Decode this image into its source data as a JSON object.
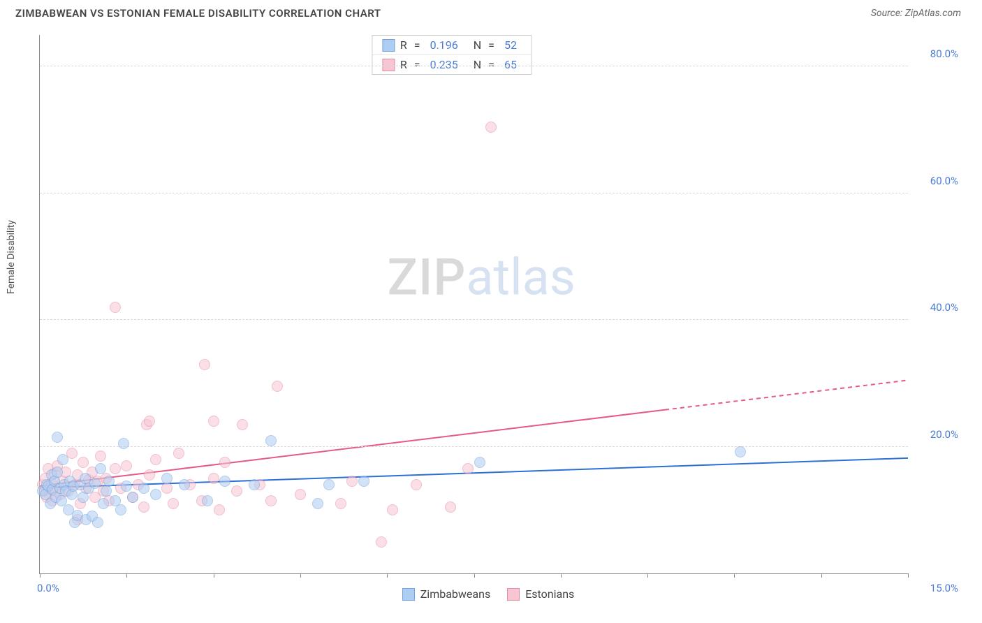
{
  "header": {
    "title": "ZIMBABWEAN VS ESTONIAN FEMALE DISABILITY CORRELATION CHART",
    "source_label": "Source: ZipAtlas.com"
  },
  "watermark": {
    "part1": "ZIP",
    "part2": "atlas"
  },
  "chart": {
    "type": "scatter",
    "ylabel": "Female Disability",
    "xlim": [
      0,
      15.0
    ],
    "ylim": [
      0,
      85.0
    ],
    "xaxis_min_label": "0.0%",
    "xaxis_max_label": "15.0%",
    "xtick_positions": [
      0,
      1.5,
      3.0,
      4.5,
      6.0,
      7.5,
      9.0,
      10.5,
      12.0,
      13.5,
      15.0
    ],
    "y_gridlines": [
      20.0,
      40.0,
      60.0,
      80.0
    ],
    "y_grid_labels": [
      "20.0%",
      "40.0%",
      "60.0%",
      "80.0%"
    ],
    "grid_color": "#d9d9d9",
    "axis_color": "#888888",
    "ylabel_color": "#4a7bd6",
    "background_color": "#ffffff",
    "marker_radius": 8,
    "marker_opacity": 0.55,
    "series": [
      {
        "name": "Zimbabweans",
        "fill": "#aecdf2",
        "stroke": "#6fa3e0",
        "r_value": "0.196",
        "n_value": "52",
        "trend": {
          "y_at_x0": 13.5,
          "y_at_xmax": 18.2,
          "solid_until_x": 15.0,
          "color": "#2e6fd6",
          "width": 2
        },
        "points": [
          {
            "x": 0.05,
            "y": 13.0
          },
          {
            "x": 0.1,
            "y": 12.5
          },
          {
            "x": 0.12,
            "y": 14.0
          },
          {
            "x": 0.15,
            "y": 13.8
          },
          {
            "x": 0.18,
            "y": 11.0
          },
          {
            "x": 0.2,
            "y": 15.5
          },
          {
            "x": 0.22,
            "y": 13.2
          },
          {
            "x": 0.25,
            "y": 14.5
          },
          {
            "x": 0.28,
            "y": 12.0
          },
          {
            "x": 0.3,
            "y": 16.0
          },
          {
            "x": 0.3,
            "y": 21.5
          },
          {
            "x": 0.35,
            "y": 13.5
          },
          {
            "x": 0.38,
            "y": 11.5
          },
          {
            "x": 0.4,
            "y": 18.0
          },
          {
            "x": 0.42,
            "y": 14.0
          },
          {
            "x": 0.45,
            "y": 13.0
          },
          {
            "x": 0.5,
            "y": 10.0
          },
          {
            "x": 0.52,
            "y": 14.5
          },
          {
            "x": 0.55,
            "y": 12.5
          },
          {
            "x": 0.58,
            "y": 13.8
          },
          {
            "x": 0.6,
            "y": 8.0
          },
          {
            "x": 0.65,
            "y": 9.2
          },
          {
            "x": 0.7,
            "y": 14.0
          },
          {
            "x": 0.75,
            "y": 12.0
          },
          {
            "x": 0.78,
            "y": 15.0
          },
          {
            "x": 0.8,
            "y": 8.5
          },
          {
            "x": 0.85,
            "y": 13.5
          },
          {
            "x": 0.9,
            "y": 9.0
          },
          {
            "x": 0.95,
            "y": 14.2
          },
          {
            "x": 1.0,
            "y": 8.0
          },
          {
            "x": 1.05,
            "y": 16.5
          },
          {
            "x": 1.1,
            "y": 11.0
          },
          {
            "x": 1.15,
            "y": 13.0
          },
          {
            "x": 1.2,
            "y": 14.5
          },
          {
            "x": 1.3,
            "y": 11.5
          },
          {
            "x": 1.4,
            "y": 10.0
          },
          {
            "x": 1.5,
            "y": 13.8
          },
          {
            "x": 1.45,
            "y": 20.5
          },
          {
            "x": 1.6,
            "y": 12.0
          },
          {
            "x": 1.8,
            "y": 13.5
          },
          {
            "x": 2.0,
            "y": 12.5
          },
          {
            "x": 2.2,
            "y": 15.0
          },
          {
            "x": 2.5,
            "y": 14.0
          },
          {
            "x": 2.9,
            "y": 11.5
          },
          {
            "x": 3.2,
            "y": 14.5
          },
          {
            "x": 3.7,
            "y": 14.0
          },
          {
            "x": 4.0,
            "y": 21.0
          },
          {
            "x": 4.8,
            "y": 11.0
          },
          {
            "x": 5.0,
            "y": 14.0
          },
          {
            "x": 5.6,
            "y": 14.5
          },
          {
            "x": 7.6,
            "y": 17.5
          },
          {
            "x": 12.1,
            "y": 19.2
          }
        ]
      },
      {
        "name": "Estonians",
        "fill": "#f6c6d3",
        "stroke": "#e88aa5",
        "r_value": "0.235",
        "n_value": "65",
        "trend": {
          "y_at_x0": 13.8,
          "y_at_xmax": 30.5,
          "solid_until_x": 10.8,
          "color": "#e45a88",
          "width": 2
        },
        "points": [
          {
            "x": 0.05,
            "y": 14.0
          },
          {
            "x": 0.08,
            "y": 13.0
          },
          {
            "x": 0.1,
            "y": 15.0
          },
          {
            "x": 0.12,
            "y": 12.0
          },
          {
            "x": 0.15,
            "y": 16.5
          },
          {
            "x": 0.18,
            "y": 13.5
          },
          {
            "x": 0.2,
            "y": 14.2
          },
          {
            "x": 0.22,
            "y": 11.5
          },
          {
            "x": 0.25,
            "y": 15.8
          },
          {
            "x": 0.28,
            "y": 13.0
          },
          {
            "x": 0.3,
            "y": 17.0
          },
          {
            "x": 0.35,
            "y": 12.5
          },
          {
            "x": 0.4,
            "y": 14.5
          },
          {
            "x": 0.45,
            "y": 16.0
          },
          {
            "x": 0.5,
            "y": 13.0
          },
          {
            "x": 0.55,
            "y": 19.0
          },
          {
            "x": 0.6,
            "y": 14.0
          },
          {
            "x": 0.65,
            "y": 15.5
          },
          {
            "x": 0.7,
            "y": 11.0
          },
          {
            "x": 0.75,
            "y": 17.5
          },
          {
            "x": 0.8,
            "y": 13.5
          },
          {
            "x": 0.85,
            "y": 14.8
          },
          {
            "x": 0.65,
            "y": 8.5
          },
          {
            "x": 0.9,
            "y": 16.0
          },
          {
            "x": 0.95,
            "y": 12.0
          },
          {
            "x": 1.0,
            "y": 14.5
          },
          {
            "x": 1.05,
            "y": 18.5
          },
          {
            "x": 1.1,
            "y": 13.0
          },
          {
            "x": 1.15,
            "y": 15.0
          },
          {
            "x": 1.2,
            "y": 11.5
          },
          {
            "x": 1.3,
            "y": 16.5
          },
          {
            "x": 1.4,
            "y": 13.5
          },
          {
            "x": 1.5,
            "y": 17.0
          },
          {
            "x": 1.6,
            "y": 12.0
          },
          {
            "x": 1.3,
            "y": 42.0
          },
          {
            "x": 1.7,
            "y": 14.0
          },
          {
            "x": 1.8,
            "y": 10.5
          },
          {
            "x": 1.9,
            "y": 15.5
          },
          {
            "x": 1.85,
            "y": 23.5
          },
          {
            "x": 1.9,
            "y": 24.0
          },
          {
            "x": 2.0,
            "y": 18.0
          },
          {
            "x": 2.2,
            "y": 13.5
          },
          {
            "x": 2.3,
            "y": 11.0
          },
          {
            "x": 2.4,
            "y": 19.0
          },
          {
            "x": 2.6,
            "y": 14.0
          },
          {
            "x": 2.8,
            "y": 11.5
          },
          {
            "x": 2.85,
            "y": 33.0
          },
          {
            "x": 3.0,
            "y": 15.0
          },
          {
            "x": 3.0,
            "y": 24.0
          },
          {
            "x": 3.1,
            "y": 10.0
          },
          {
            "x": 3.2,
            "y": 17.5
          },
          {
            "x": 3.4,
            "y": 13.0
          },
          {
            "x": 3.5,
            "y": 23.5
          },
          {
            "x": 3.8,
            "y": 14.0
          },
          {
            "x": 4.0,
            "y": 11.5
          },
          {
            "x": 4.1,
            "y": 29.5
          },
          {
            "x": 4.5,
            "y": 12.5
          },
          {
            "x": 5.2,
            "y": 11.0
          },
          {
            "x": 5.4,
            "y": 14.5
          },
          {
            "x": 5.9,
            "y": 5.0
          },
          {
            "x": 6.1,
            "y": 10.0
          },
          {
            "x": 6.5,
            "y": 14.0
          },
          {
            "x": 7.1,
            "y": 10.5
          },
          {
            "x": 7.4,
            "y": 16.5
          },
          {
            "x": 7.8,
            "y": 70.5
          }
        ]
      }
    ],
    "legend_stats_labels": {
      "r_prefix": "R",
      "n_prefix": "N",
      "equals": "="
    }
  }
}
